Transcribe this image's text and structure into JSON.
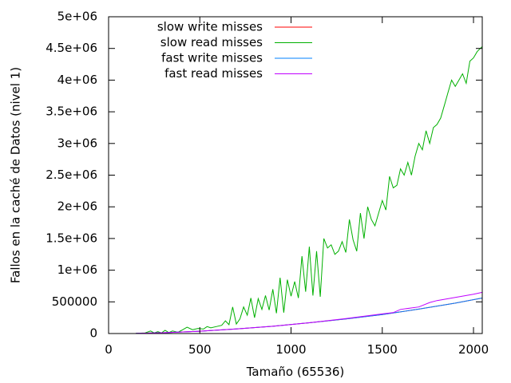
{
  "chart_data": {
    "type": "line",
    "title": "",
    "xlabel": "Tamaño (65536)",
    "ylabel": "Fallos en la caché de Datos (nivel 1)",
    "xlim": [
      0,
      2048
    ],
    "ylim": [
      0,
      5000000
    ],
    "x_ticks": [
      0,
      500,
      1000,
      1500,
      2000
    ],
    "x_tick_labels": [
      "0",
      "500",
      "1000",
      "1500",
      "2000"
    ],
    "y_ticks": [
      0,
      500000,
      1000000,
      1500000,
      2000000,
      2500000,
      3000000,
      3500000,
      4000000,
      4500000,
      5000000
    ],
    "y_tick_labels": [
      "0",
      "500000",
      "1e+06",
      "1.5e+06",
      "2e+06",
      "2.5e+06",
      "3e+06",
      "3.5e+06",
      "4e+06",
      "4.5e+06",
      "5e+06"
    ],
    "grid": false,
    "legend_position": "top-left",
    "series": [
      {
        "name": "slow write misses",
        "color": "#ff0000",
        "x": [
          150,
          300,
          500,
          700,
          900,
          1100,
          1300,
          1500,
          1700,
          1900,
          2048
        ],
        "values": [
          2000,
          12000,
          36000,
          72000,
          115000,
          170000,
          230000,
          300000,
          385000,
          480000,
          560000
        ]
      },
      {
        "name": "slow read misses",
        "color": "#00b000",
        "x": [
          150,
          200,
          230,
          250,
          270,
          290,
          310,
          330,
          350,
          380,
          400,
          430,
          460,
          490,
          520,
          540,
          560,
          590,
          620,
          640,
          660,
          680,
          700,
          720,
          740,
          760,
          780,
          800,
          820,
          840,
          860,
          880,
          900,
          920,
          940,
          960,
          980,
          1000,
          1020,
          1040,
          1060,
          1080,
          1100,
          1120,
          1140,
          1160,
          1180,
          1200,
          1220,
          1240,
          1260,
          1280,
          1300,
          1320,
          1340,
          1360,
          1380,
          1400,
          1420,
          1440,
          1460,
          1480,
          1500,
          1520,
          1540,
          1560,
          1580,
          1600,
          1620,
          1640,
          1660,
          1680,
          1700,
          1720,
          1740,
          1760,
          1780,
          1800,
          1820,
          1840,
          1860,
          1880,
          1900,
          1920,
          1940,
          1960,
          1980,
          2000,
          2020,
          2048
        ],
        "values": [
          3000,
          10000,
          40000,
          10000,
          30000,
          10000,
          50000,
          15000,
          40000,
          20000,
          50000,
          100000,
          60000,
          80000,
          70000,
          110000,
          90000,
          110000,
          130000,
          200000,
          140000,
          420000,
          150000,
          230000,
          420000,
          290000,
          560000,
          250000,
          550000,
          380000,
          600000,
          370000,
          700000,
          320000,
          880000,
          330000,
          850000,
          590000,
          820000,
          560000,
          1220000,
          660000,
          1370000,
          600000,
          1300000,
          580000,
          1500000,
          1350000,
          1400000,
          1250000,
          1300000,
          1450000,
          1280000,
          1800000,
          1480000,
          1300000,
          1900000,
          1500000,
          2000000,
          1800000,
          1700000,
          1900000,
          2100000,
          1950000,
          2480000,
          2300000,
          2340000,
          2600000,
          2500000,
          2700000,
          2500000,
          2800000,
          3000000,
          2900000,
          3200000,
          3000000,
          3250000,
          3300000,
          3400000,
          3600000,
          3800000,
          4000000,
          3900000,
          4000000,
          4100000,
          3950000,
          4300000,
          4350000,
          4450000,
          4530000
        ]
      },
      {
        "name": "fast write misses",
        "color": "#0080ff",
        "x": [
          150,
          300,
          500,
          700,
          900,
          1100,
          1300,
          1500,
          1700,
          1900,
          2048
        ],
        "values": [
          2000,
          12000,
          36000,
          72000,
          115000,
          170000,
          230000,
          300000,
          385000,
          480000,
          560000
        ]
      },
      {
        "name": "fast read misses",
        "color": "#c000ff",
        "x": [
          150,
          300,
          500,
          700,
          900,
          1100,
          1300,
          1500,
          1560,
          1600,
          1700,
          1760,
          1800,
          1900,
          2000,
          2048
        ],
        "values": [
          2000,
          12000,
          36000,
          72000,
          115000,
          170000,
          235000,
          310000,
          330000,
          380000,
          420000,
          490000,
          520000,
          570000,
          620000,
          650000
        ]
      }
    ]
  }
}
